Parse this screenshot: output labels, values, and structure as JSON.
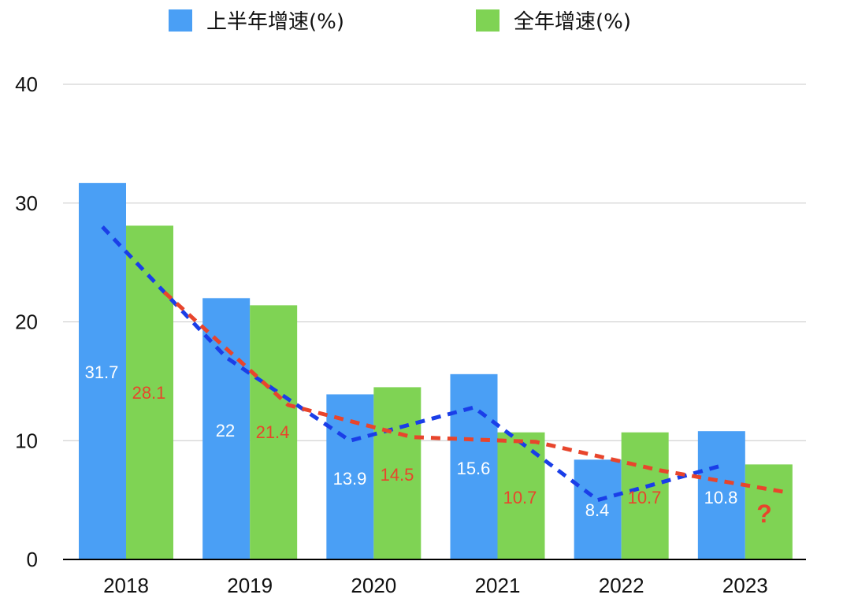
{
  "chart_data": {
    "type": "bar",
    "categories": [
      "2018",
      "2019",
      "2020",
      "2021",
      "2022",
      "2023"
    ],
    "series": [
      {
        "name": "上半年增速(%)",
        "color": "#4a9ff5",
        "values": [
          31.7,
          22,
          13.9,
          15.6,
          8.4,
          10.8
        ],
        "labels": [
          "31.7",
          "22",
          "13.9",
          "15.6",
          "8.4",
          "10.8"
        ],
        "label_color": "#ffffff"
      },
      {
        "name": "全年增速(%)",
        "color": "#7fd354",
        "values": [
          28.1,
          21.4,
          14.5,
          10.7,
          10.7,
          8.0
        ],
        "labels": [
          "28.1",
          "21.4",
          "14.5",
          "10.7",
          "10.7",
          "?"
        ],
        "label_color": "#e8452c"
      }
    ],
    "trendlines": [
      {
        "color": "#1a3ee8",
        "points": [
          [
            0,
            28
          ],
          [
            1,
            17
          ],
          [
            2,
            10
          ],
          [
            3,
            12.8
          ],
          [
            4,
            5
          ],
          [
            5,
            7.9
          ]
        ]
      },
      {
        "color": "#e8452c",
        "points": [
          [
            0.5,
            22.5
          ],
          [
            1.5,
            13
          ],
          [
            2.5,
            10.3
          ],
          [
            3.5,
            9.9
          ],
          [
            4.5,
            7.5
          ],
          [
            5.5,
            5.7
          ]
        ]
      }
    ],
    "yticks": [
      "0",
      "10",
      "20",
      "30",
      "40"
    ],
    "ylim": [
      0,
      40
    ],
    "grid": true,
    "legend_position": "top"
  }
}
